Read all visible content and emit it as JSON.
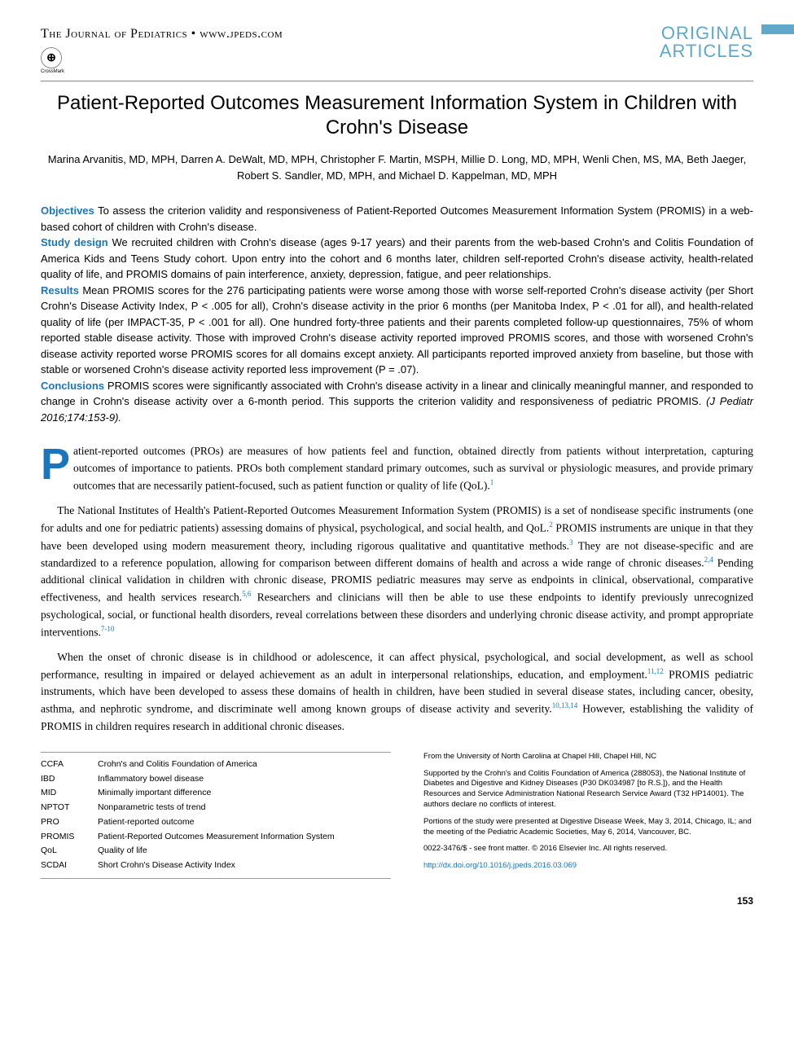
{
  "header": {
    "journal": "The Journal of Pediatrics • www.jpeds.com",
    "badge_line1": "ORIGINAL",
    "badge_line2": "ARTICLES",
    "crossmark": "CrossMark"
  },
  "title": "Patient-Reported Outcomes Measurement Information System in Children with Crohn's Disease",
  "authors": "Marina Arvanitis, MD, MPH, Darren A. DeWalt, MD, MPH, Christopher F. Martin, MSPH, Millie D. Long, MD, MPH, Wenli Chen, MS, MA, Beth Jaeger, Robert S. Sandler, MD, MPH, and Michael D. Kappelman, MD, MPH",
  "abstract": {
    "objectives_label": "Objectives",
    "objectives": " To assess the criterion validity and responsiveness of Patient-Reported Outcomes Measurement Information System (PROMIS) in a web-based cohort of children with Crohn's disease.",
    "study_label": "Study design",
    "study": " We recruited children with Crohn's disease (ages 9-17 years) and their parents from the web-based Crohn's and Colitis Foundation of America Kids and Teens Study cohort. Upon entry into the cohort and 6 months later, children self-reported Crohn's disease activity, health-related quality of life, and PROMIS domains of pain interference, anxiety, depression, fatigue, and peer relationships.",
    "results_label": "Results",
    "results": " Mean PROMIS scores for the 276 participating patients were worse among those with worse self-reported Crohn's disease activity (per Short Crohn's Disease Activity Index, P < .005 for all), Crohn's disease activity in the prior 6 months (per Manitoba Index, P < .01 for all), and health-related quality of life (per IMPACT-35, P < .001 for all). One hundred forty-three patients and their parents completed follow-up questionnaires, 75% of whom reported stable disease activity. Those with improved Crohn's disease activity reported improved PROMIS scores, and those with worsened Crohn's disease activity reported worse PROMIS scores for all domains except anxiety. All participants reported improved anxiety from baseline, but those with stable or worsened Crohn's disease activity reported less improvement (P = .07).",
    "conclusions_label": "Conclusions",
    "conclusions": " PROMIS scores were significantly associated with Crohn's disease activity in a linear and clinically meaningful manner, and responded to change in Crohn's disease activity over a 6-month period. This supports the criterion validity and responsiveness of pediatric PROMIS.",
    "citation": " (J Pediatr 2016;174:153-9)."
  },
  "body": {
    "dropcap": "P",
    "p1": "atient-reported outcomes (PROs) are measures of how patients feel and function, obtained directly from patients without interpretation, capturing outcomes of importance to patients. PROs both complement standard primary outcomes, such as survival or physiologic measures, and provide primary outcomes that are necessarily patient-focused, such as patient function or quality of life (QoL).",
    "p1_ref": "1",
    "p2a": "The National Institutes of Health's Patient-Reported Outcomes Measurement Information System (PROMIS) is a set of nondisease specific instruments (one for adults and one for pediatric patients) assessing domains of physical, psychological, and social health, and QoL.",
    "p2_ref1": "2",
    "p2b": " PROMIS instruments are unique in that they have been developed using modern measurement theory, including rigorous qualitative and quantitative methods.",
    "p2_ref2": "3",
    "p2c": " They are not disease-specific and are standardized to a reference population, allowing for comparison between different domains of health and across a wide range of chronic diseases.",
    "p2_ref3": "2,4",
    "p2d": " Pending additional clinical validation in children with chronic disease, PROMIS pediatric measures may serve as endpoints in clinical, observational, comparative effectiveness, and health services research.",
    "p2_ref4": "5,6",
    "p2e": " Researchers and clinicians will then be able to use these endpoints to identify previously unrecognized psychological, social, or functional health disorders, reveal correlations between these disorders and underlying chronic disease activity, and prompt appropriate interventions.",
    "p2_ref5": "7-10",
    "p3a": "When the onset of chronic disease is in childhood or adolescence, it can affect physical, psychological, and social development, as well as school performance, resulting in impaired or delayed achievement as an adult in interpersonal relationships, education, and employment.",
    "p3_ref1": "11,12",
    "p3b": " PROMIS pediatric instruments, which have been developed to assess these domains of health in children, have been studied in several disease states, including cancer, obesity, asthma, and nephrotic syndrome, and discriminate well among known groups of disease activity and severity.",
    "p3_ref2": "10,13,14",
    "p3c": " However, establishing the validity of PROMIS in children requires research in additional chronic diseases."
  },
  "abbreviations": [
    {
      "k": "CCFA",
      "v": "Crohn's and Colitis Foundation of America"
    },
    {
      "k": "IBD",
      "v": "Inflammatory bowel disease"
    },
    {
      "k": "MID",
      "v": "Minimally important difference"
    },
    {
      "k": "NPTOT",
      "v": "Nonparametric tests of trend"
    },
    {
      "k": "PRO",
      "v": "Patient-reported outcome"
    },
    {
      "k": "PROMIS",
      "v": "Patient-Reported Outcomes Measurement Information System"
    },
    {
      "k": "QoL",
      "v": "Quality of life"
    },
    {
      "k": "SCDAI",
      "v": "Short Crohn's Disease Activity Index"
    }
  ],
  "footnotes": {
    "affiliation": "From the University of North Carolina at Chapel Hill, Chapel Hill, NC",
    "funding": "Supported by the Crohn's and Colitis Foundation of America (288053), the National Institute of Diabetes and Digestive and Kidney Diseases (P30 DK034987 [to R.S.]), and the Health Resources and Service Administration National Research Service Award (T32 HP14001). The authors declare no conflicts of interest.",
    "presentation": "Portions of the study were presented at Digestive Disease Week, May 3, 2014, Chicago, IL; and the meeting of the Pediatric Academic Societies, May 6, 2014, Vancouver, BC.",
    "copyright": "0022-3476/$ - see front matter. © 2016 Elsevier Inc. All rights reserved.",
    "doi": "http://dx.doi.org/10.1016/j.jpeds.2016.03.069"
  },
  "page_number": "153",
  "colors": {
    "accent": "#1a75bc",
    "badge": "#5fa8c9"
  }
}
